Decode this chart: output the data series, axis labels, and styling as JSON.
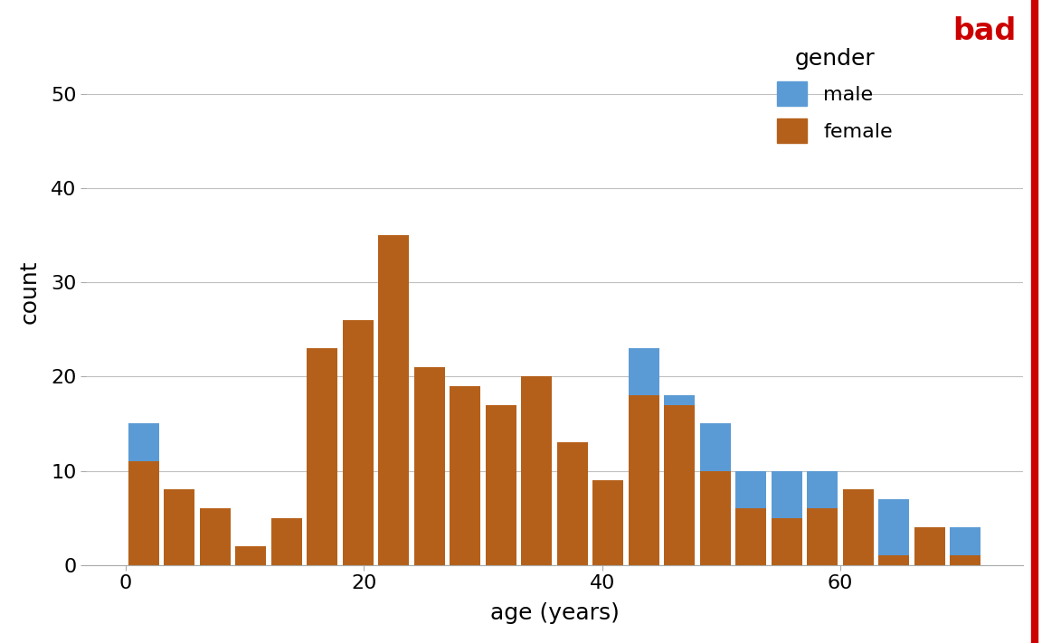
{
  "xlabel": "age (years)",
  "ylabel": "count",
  "legend_title": "gender",
  "title": "bad",
  "title_color": "#cc0000",
  "male_color": "#5b9bd5",
  "female_color": "#b5601a",
  "background_color": "#ffffff",
  "grid_color": "#c0c0c0",
  "ylim": [
    0,
    58
  ],
  "yticks": [
    0,
    10,
    20,
    30,
    40,
    50
  ],
  "xticks": [
    0,
    20,
    40,
    60
  ],
  "axis_label_fontsize": 18,
  "tick_fontsize": 16,
  "legend_fontsize": 16,
  "legend_title_fontsize": 18,
  "bin_edges": [
    0,
    3,
    6,
    9,
    12,
    15,
    18,
    21,
    24,
    27,
    30,
    33,
    36,
    39,
    42,
    45,
    48,
    51,
    54,
    57,
    60,
    63,
    66,
    69,
    72
  ],
  "female_counts": [
    11,
    8,
    6,
    2,
    5,
    23,
    26,
    35,
    21,
    19,
    17,
    20,
    13,
    9,
    18,
    17,
    10,
    6,
    5,
    6,
    8,
    1,
    4,
    1
  ],
  "male_counts": [
    4,
    0,
    0,
    0,
    0,
    0,
    0,
    0,
    0,
    0,
    0,
    0,
    0,
    0,
    5,
    1,
    5,
    4,
    5,
    4,
    0,
    6,
    0,
    3
  ]
}
